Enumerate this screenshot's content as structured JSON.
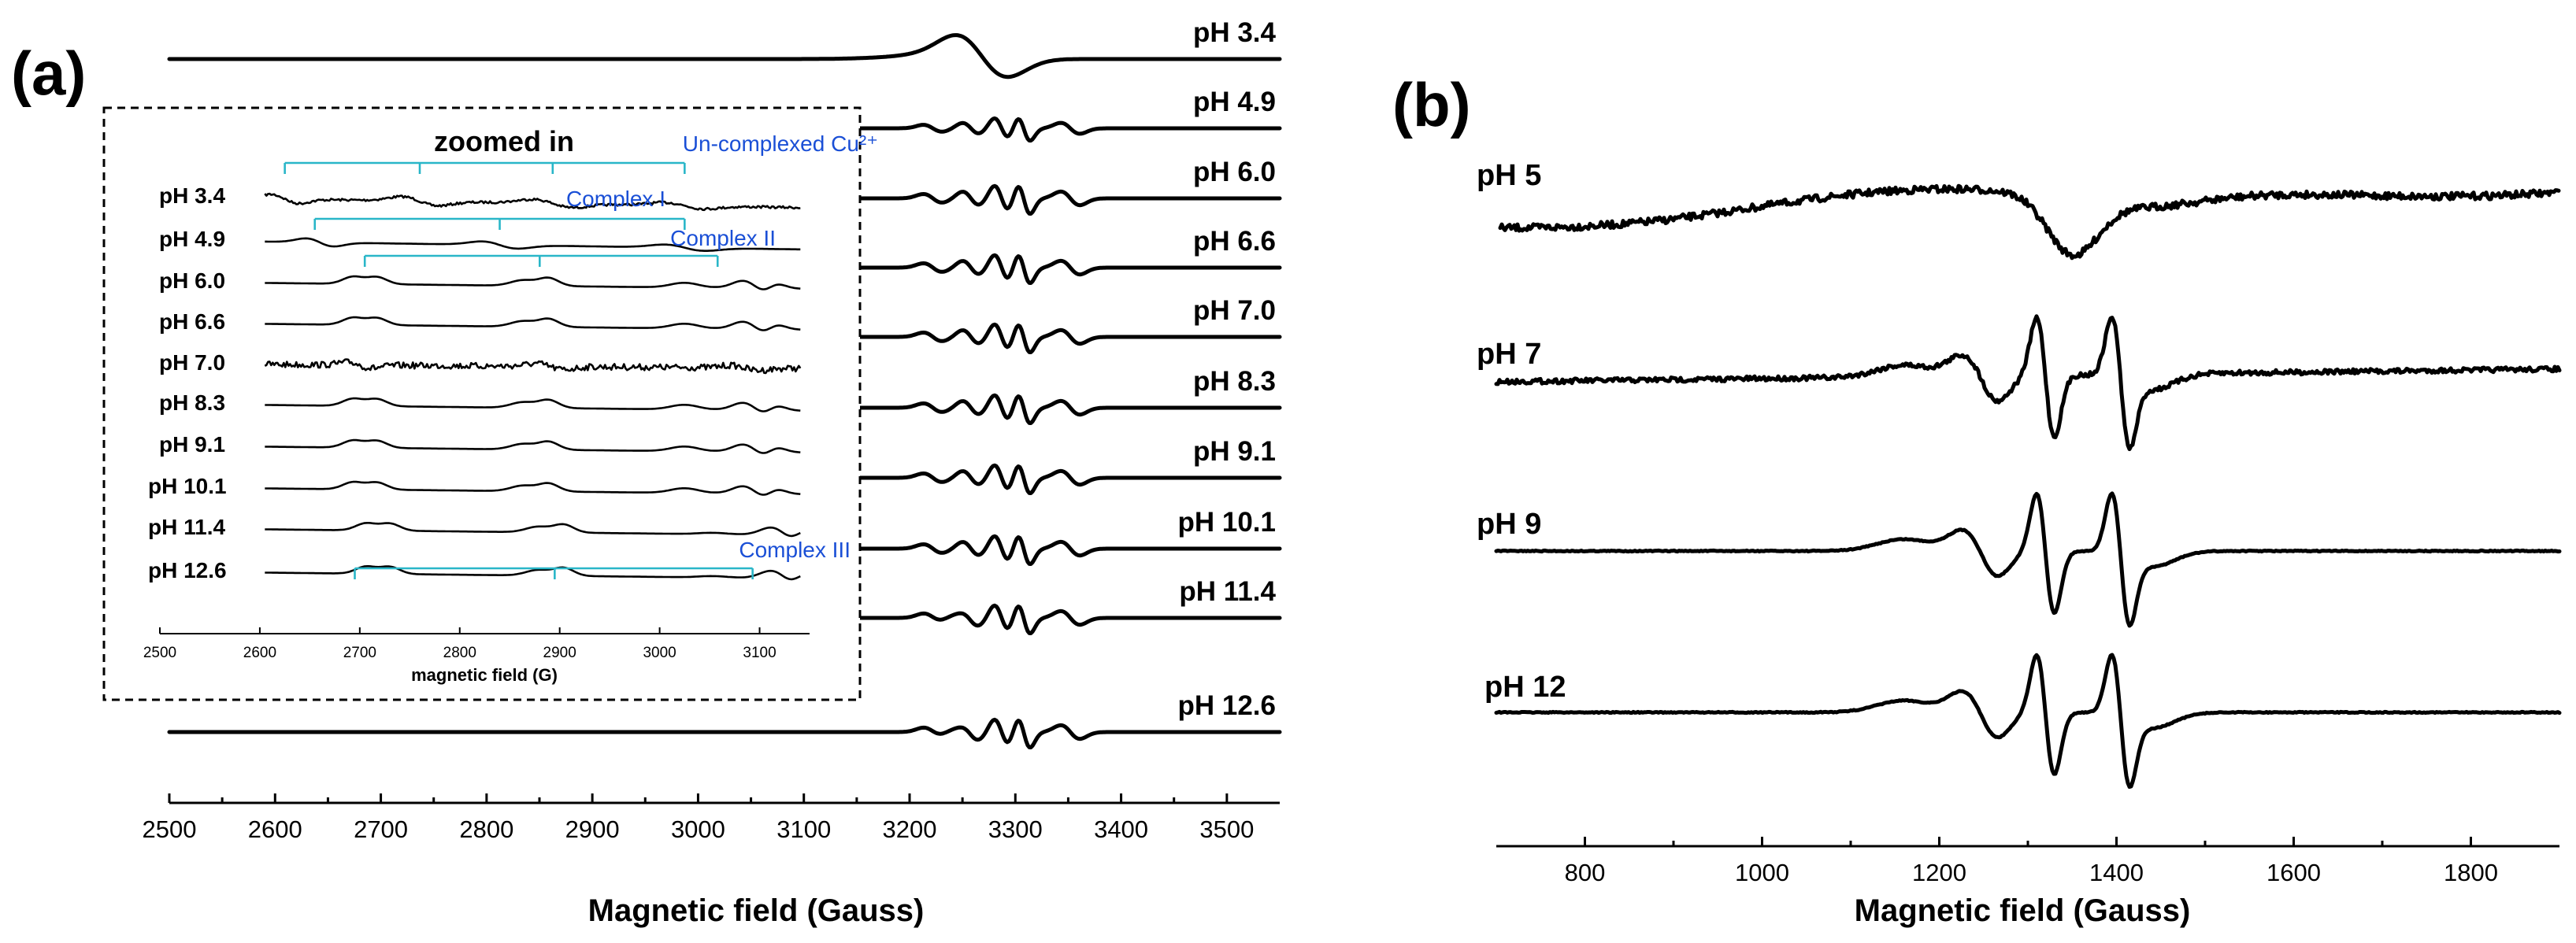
{
  "figure": {
    "background": "#ffffff",
    "accent_complex": "#1a4fd6",
    "accent_bracket": "#29b6c8"
  },
  "chart_data": [
    {
      "type": "line",
      "panel_label": "(a)",
      "title": "",
      "xlabel": "Magnetic field (Gauss)",
      "ylabel": "",
      "xlim": [
        2500,
        3550
      ],
      "x_ticks": [
        2500,
        2600,
        2700,
        2800,
        2900,
        3000,
        3100,
        3200,
        3300,
        3400,
        3500
      ],
      "series": [
        {
          "name": "pH 3.4",
          "kind": "uncomplexed"
        },
        {
          "name": "pH 4.9",
          "kind": "complexI"
        },
        {
          "name": "pH 6.0",
          "kind": "complexII"
        },
        {
          "name": "pH 6.6",
          "kind": "complexII"
        },
        {
          "name": "pH 7.0",
          "kind": "complexII"
        },
        {
          "name": "pH 8.3",
          "kind": "complexII"
        },
        {
          "name": "pH 9.1",
          "kind": "complexII"
        },
        {
          "name": "pH 10.1",
          "kind": "complexII"
        },
        {
          "name": "pH 11.4",
          "kind": "complexIII"
        },
        {
          "name": "pH 12.6",
          "kind": "complexIII"
        }
      ],
      "inset": {
        "title": "zoomed in",
        "xlabel": "magnetic field (G)",
        "xlim": [
          2500,
          3150
        ],
        "x_ticks": [
          2500,
          2600,
          2700,
          2800,
          2900,
          3000,
          3100
        ],
        "series_labels": [
          "pH 3.4",
          "pH 4.9",
          "pH 6.0",
          "pH 6.6",
          "pH 7.0",
          "pH 8.3",
          "pH 9.1",
          "pH 10.1",
          "pH 11.4",
          "pH 12.6"
        ],
        "annotations": [
          {
            "label": "Un-complexed Cu²⁺",
            "positions_G": [
              2625,
              2760,
              2893,
              3025
            ]
          },
          {
            "label": "Complex I",
            "positions_G": [
              2655,
              2840,
              3025
            ]
          },
          {
            "label": "Complex II",
            "positions_G": [
              2705,
              2880,
              3058
            ]
          },
          {
            "label": "Complex III",
            "positions_G": [
              2695,
              2895,
              3093
            ]
          }
        ]
      }
    },
    {
      "type": "line",
      "panel_label": "(b)",
      "title": "",
      "xlabel": "Magnetic field (Gauss)",
      "ylabel": "",
      "xlim": [
        700,
        1900
      ],
      "x_ticks": [
        800,
        1000,
        1200,
        1400,
        1600,
        1800
      ],
      "series": [
        {
          "name": "pH 5",
          "kind": "broad"
        },
        {
          "name": "pH 7",
          "kind": "resolved-noisy"
        },
        {
          "name": "pH 9",
          "kind": "resolved"
        },
        {
          "name": "pH 12",
          "kind": "resolved"
        }
      ]
    }
  ]
}
